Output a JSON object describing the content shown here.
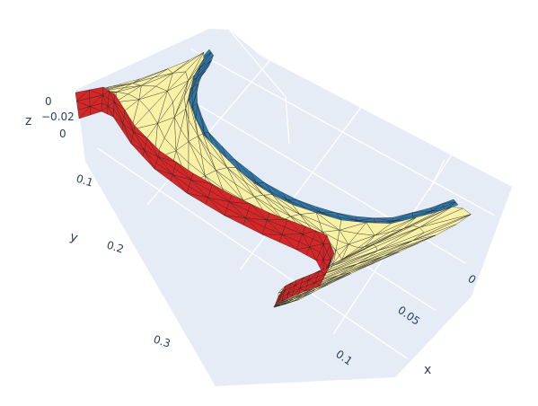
{
  "chart_data": {
    "type": "mesh3d",
    "title": "",
    "scene_background": "#e5ecf6",
    "grid_color": "#ffffff",
    "axes": {
      "x": {
        "title": "x",
        "range": [
          -0.02,
          0.12
        ],
        "ticks": [
          {
            "v": 0,
            "label": "0"
          },
          {
            "v": 0.05,
            "label": "0.05"
          },
          {
            "v": 0.1,
            "label": "0.1"
          }
        ]
      },
      "y": {
        "title": "y",
        "range": [
          -0.01,
          0.38
        ],
        "ticks": [
          {
            "v": 0,
            "label": "0"
          },
          {
            "v": 0.1,
            "label": "0.1"
          },
          {
            "v": 0.2,
            "label": "0.2"
          },
          {
            "v": 0.3,
            "label": "0.3"
          }
        ]
      },
      "z": {
        "title": "z",
        "range": [
          -0.03,
          0.005
        ],
        "ticks": [
          {
            "v": 0,
            "label": "0"
          },
          {
            "v": -0.02,
            "label": "−0.02"
          }
        ]
      }
    },
    "series": [
      {
        "surface": "flat-sheet",
        "color": "#f9f1a5",
        "edge_color": "#222222"
      },
      {
        "surface": "side-wall",
        "color": "#d62728",
        "edge_color": "#222222"
      },
      {
        "surface": "side-wall",
        "color": "#2f79aa",
        "edge_color": "#222222"
      }
    ]
  }
}
